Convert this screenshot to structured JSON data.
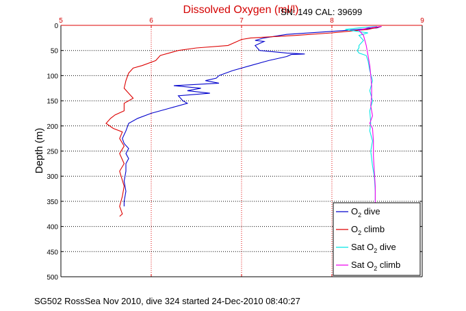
{
  "chart_data": {
    "type": "line",
    "title": "Dissolved Oxygen (ml/l)",
    "ylabel": "Depth (m)",
    "footer": "SG502 RossSea Nov 2010, dive 324 started 24-Dec-2010 08:40:27",
    "annotation": "SN: 149  CAL: 39699",
    "xlim": [
      5,
      9
    ],
    "ylim": [
      0,
      500
    ],
    "y_reversed": true,
    "x_axis_position": "top",
    "x_ticks": [
      "5",
      "6",
      "7",
      "8",
      "9"
    ],
    "y_ticks": [
      "0",
      "50",
      "100",
      "150",
      "200",
      "250",
      "300",
      "350",
      "400",
      "450",
      "500"
    ],
    "grid": true,
    "legend_position": "bottom-right",
    "legend": [
      {
        "label": "O",
        "sub": "2",
        "suffix": " dive",
        "color": "#0000cc"
      },
      {
        "label": "O",
        "sub": "2",
        "suffix": " climb",
        "color": "#dd0000"
      },
      {
        "label": "Sat O",
        "sub": "2",
        "suffix": " dive",
        "color": "#00e5e5"
      },
      {
        "label": "Sat O",
        "sub": "2",
        "suffix": " climb",
        "color": "#ee00ee"
      }
    ],
    "series": [
      {
        "name": "O2 dive",
        "color": "#0000cc",
        "points": [
          [
            8.55,
            2
          ],
          [
            8.5,
            5
          ],
          [
            8.3,
            8
          ],
          [
            8.0,
            12
          ],
          [
            7.5,
            18
          ],
          [
            7.25,
            25
          ],
          [
            7.15,
            30
          ],
          [
            7.25,
            32
          ],
          [
            7.15,
            40
          ],
          [
            7.2,
            50
          ],
          [
            7.5,
            55
          ],
          [
            7.7,
            57
          ],
          [
            7.55,
            58
          ],
          [
            7.5,
            62
          ],
          [
            7.3,
            70
          ],
          [
            7.1,
            80
          ],
          [
            6.9,
            90
          ],
          [
            6.75,
            100
          ],
          [
            6.72,
            105
          ],
          [
            6.6,
            110
          ],
          [
            6.75,
            115
          ],
          [
            6.25,
            120
          ],
          [
            6.55,
            125
          ],
          [
            6.4,
            130
          ],
          [
            6.65,
            135
          ],
          [
            6.3,
            140
          ],
          [
            6.35,
            150
          ],
          [
            6.4,
            155
          ],
          [
            6.2,
            165
          ],
          [
            6.0,
            175
          ],
          [
            5.85,
            185
          ],
          [
            5.75,
            195
          ],
          [
            5.72,
            210
          ],
          [
            5.68,
            225
          ],
          [
            5.7,
            235
          ],
          [
            5.75,
            245
          ],
          [
            5.72,
            255
          ],
          [
            5.75,
            265
          ],
          [
            5.72,
            275
          ],
          [
            5.72,
            290
          ],
          [
            5.7,
            310
          ],
          [
            5.72,
            330
          ],
          [
            5.7,
            350
          ],
          [
            5.7,
            360
          ]
        ]
      },
      {
        "name": "O2 climb",
        "color": "#dd0000",
        "points": [
          [
            8.55,
            2
          ],
          [
            8.4,
            8
          ],
          [
            8.0,
            15
          ],
          [
            7.6,
            20
          ],
          [
            7.1,
            25
          ],
          [
            7.0,
            28
          ],
          [
            6.85,
            40
          ],
          [
            6.5,
            45
          ],
          [
            6.3,
            50
          ],
          [
            6.1,
            60
          ],
          [
            6.05,
            70
          ],
          [
            5.9,
            80
          ],
          [
            5.8,
            85
          ],
          [
            5.75,
            95
          ],
          [
            5.72,
            110
          ],
          [
            5.7,
            125
          ],
          [
            5.75,
            135
          ],
          [
            5.8,
            145
          ],
          [
            5.7,
            155
          ],
          [
            5.7,
            170
          ],
          [
            5.6,
            178
          ],
          [
            5.55,
            185
          ],
          [
            5.5,
            195
          ],
          [
            5.58,
            205
          ],
          [
            5.68,
            212
          ],
          [
            5.65,
            225
          ],
          [
            5.7,
            240
          ],
          [
            5.65,
            255
          ],
          [
            5.7,
            275
          ],
          [
            5.65,
            290
          ],
          [
            5.7,
            320
          ],
          [
            5.68,
            340
          ],
          [
            5.65,
            360
          ],
          [
            5.68,
            375
          ],
          [
            5.65,
            380
          ]
        ]
      },
      {
        "name": "Sat O2 dive",
        "color": "#00e5e5",
        "points": [
          [
            8.5,
            2
          ],
          [
            8.3,
            5
          ],
          [
            8.15,
            8
          ],
          [
            8.2,
            10
          ],
          [
            8.4,
            15
          ],
          [
            8.3,
            20
          ],
          [
            8.35,
            30
          ],
          [
            8.3,
            40
          ],
          [
            8.3,
            45
          ],
          [
            8.28,
            50
          ],
          [
            8.3,
            55
          ],
          [
            8.38,
            60
          ],
          [
            8.4,
            70
          ],
          [
            8.42,
            90
          ],
          [
            8.45,
            110
          ],
          [
            8.42,
            130
          ],
          [
            8.45,
            150
          ],
          [
            8.42,
            170
          ],
          [
            8.43,
            195
          ],
          [
            8.42,
            210
          ],
          [
            8.45,
            230
          ],
          [
            8.43,
            250
          ],
          [
            8.45,
            280
          ],
          [
            8.47,
            300
          ],
          [
            8.48,
            330
          ],
          [
            8.48,
            360
          ],
          [
            8.48,
            380
          ]
        ]
      },
      {
        "name": "Sat O2 climb",
        "color": "#ee00ee",
        "points": [
          [
            8.55,
            2
          ],
          [
            8.4,
            5
          ],
          [
            8.3,
            10
          ],
          [
            8.35,
            20
          ],
          [
            8.38,
            40
          ],
          [
            8.4,
            60
          ],
          [
            8.42,
            80
          ],
          [
            8.43,
            100
          ],
          [
            8.44,
            120
          ],
          [
            8.44,
            140
          ],
          [
            8.43,
            160
          ],
          [
            8.45,
            180
          ],
          [
            8.42,
            195
          ],
          [
            8.45,
            205
          ],
          [
            8.46,
            230
          ],
          [
            8.46,
            260
          ],
          [
            8.47,
            290
          ],
          [
            8.48,
            320
          ],
          [
            8.48,
            350
          ],
          [
            8.48,
            380
          ]
        ]
      }
    ]
  }
}
